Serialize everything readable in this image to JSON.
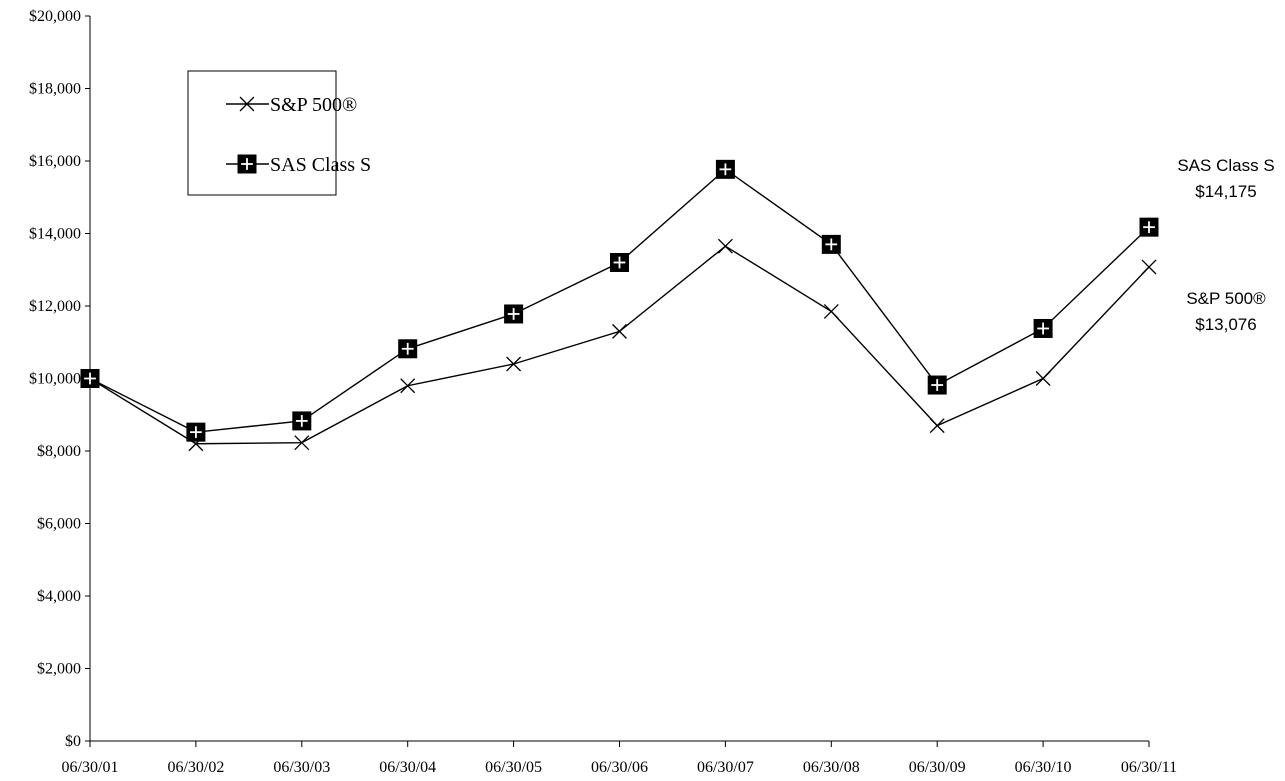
{
  "chart_data": {
    "type": "line",
    "categories": [
      "06/30/01",
      "06/30/02",
      "06/30/03",
      "06/30/04",
      "06/30/05",
      "06/30/06",
      "06/30/07",
      "06/30/08",
      "06/30/09",
      "06/30/10",
      "06/30/11"
    ],
    "y_ticks": [
      "$0",
      "$2,000",
      "$4,000",
      "$6,000",
      "$8,000",
      "$10,000",
      "$12,000",
      "$14,000",
      "$16,000",
      "$18,000",
      "$20,000"
    ],
    "ylim": [
      0,
      20000
    ],
    "title": "",
    "xlabel": "",
    "ylabel": "",
    "grid": false,
    "legend_position": "top-left",
    "series": [
      {
        "name": "S&P 500®",
        "marker": "x",
        "color": "#000000",
        "values": [
          10000,
          8200,
          8230,
          9800,
          10400,
          11300,
          13650,
          11850,
          8700,
          10000,
          13076
        ]
      },
      {
        "name": "SAS Class S",
        "marker": "square-plus",
        "color": "#000000",
        "values": [
          10000,
          8520,
          8830,
          10820,
          11780,
          13200,
          15770,
          13700,
          9820,
          11380,
          14175
        ]
      }
    ],
    "annotations": [
      {
        "series_index": 1,
        "line1": "SAS Class S",
        "line2": "$14,175"
      },
      {
        "series_index": 0,
        "line1": "S&P 500®",
        "line2": "$13,076"
      }
    ]
  }
}
